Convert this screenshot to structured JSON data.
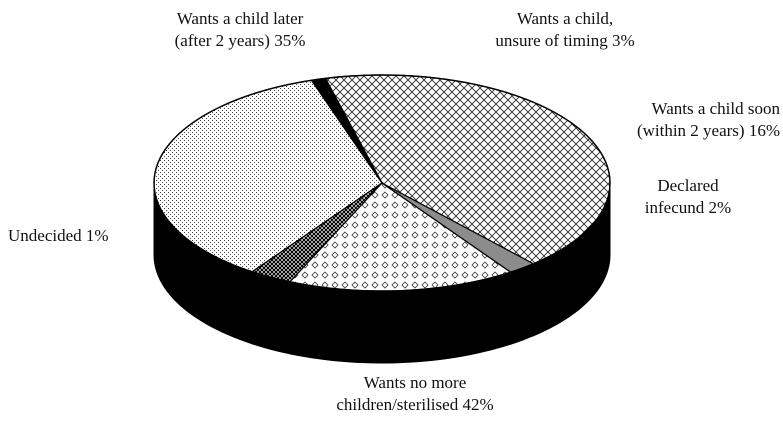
{
  "chart_data": {
    "type": "pie",
    "style": "3d-pie",
    "slices": [
      {
        "key": "later",
        "value": 35,
        "lines": [
          "Wants a child later",
          "(after 2 years) 35%"
        ]
      },
      {
        "key": "unsure",
        "value": 3,
        "lines": [
          "Wants a child,",
          "unsure of timing 3%"
        ]
      },
      {
        "key": "soon",
        "value": 16,
        "lines": [
          "Wants a child soon",
          "(within 2 years) 16%"
        ]
      },
      {
        "key": "infecund",
        "value": 2,
        "lines": [
          "Declared",
          "infecund 2%"
        ]
      },
      {
        "key": "nomore",
        "value": 42,
        "lines": [
          "Wants no more",
          "children/sterilised 42%"
        ]
      },
      {
        "key": "undecided",
        "value": 1,
        "lines": [
          "Undecided 1%"
        ]
      }
    ],
    "colors": {
      "outline": "#000000",
      "side": "#000000",
      "later": "#ffffff",
      "unsure": "#ffffff",
      "soon": "#ffffff",
      "infecund": "#8c8c8c",
      "nomore": "#ffffff",
      "undecided": "#000000"
    }
  }
}
